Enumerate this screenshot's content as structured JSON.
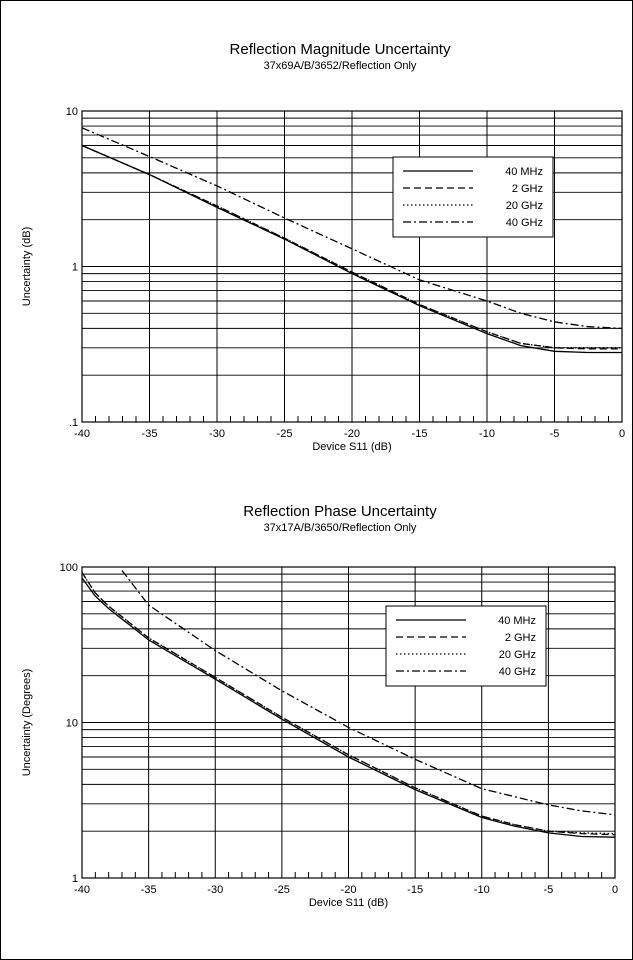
{
  "chart_data": [
    {
      "type": "line",
      "title": "Reflection Magnitude Uncertainty",
      "subtitle": "37x69A/B/3652/Reflection Only",
      "xlabel": "Device S11 (dB)",
      "ylabel": "Uncertainty (dB)",
      "xlim": [
        -40,
        0
      ],
      "ylim": [
        0.1,
        10
      ],
      "yscale": "log",
      "grid": true,
      "legend_position": "top-right",
      "x_ticks": [
        -40,
        -35,
        -30,
        -25,
        -20,
        -15,
        -10,
        -5,
        0
      ],
      "x_tick_labels": [
        "-40",
        "-35",
        "-30",
        "-25",
        "-20",
        "-15",
        "-10",
        "-5",
        "0"
      ],
      "y_ticks": [
        0.1,
        1,
        10
      ],
      "y_tick_labels": [
        ".1",
        "1",
        "10"
      ],
      "x": [
        -40,
        -35,
        -30,
        -25,
        -20,
        -15,
        -10,
        -7.5,
        -5,
        -2.5,
        0
      ],
      "series": [
        {
          "name": "40 MHz",
          "dash": "solid",
          "values": [
            6.0,
            3.9,
            2.4,
            1.5,
            0.9,
            0.56,
            0.37,
            0.31,
            0.285,
            0.28,
            0.28
          ]
        },
        {
          "name": "2 GHz",
          "dash": "dashed",
          "values": [
            6.0,
            3.9,
            2.45,
            1.52,
            0.92,
            0.57,
            0.38,
            0.32,
            0.3,
            0.295,
            0.295
          ]
        },
        {
          "name": "20 GHz",
          "dash": "dotted",
          "values": [
            6.0,
            3.9,
            2.45,
            1.52,
            0.92,
            0.57,
            0.38,
            0.32,
            0.3,
            0.3,
            0.3
          ]
        },
        {
          "name": "40 GHz",
          "dash": "dashdot",
          "values": [
            7.8,
            5.1,
            3.3,
            2.05,
            1.3,
            0.82,
            0.6,
            0.5,
            0.44,
            0.41,
            0.4
          ]
        }
      ]
    },
    {
      "type": "line",
      "title": "Reflection Phase Uncertainty",
      "subtitle": "37x17A/B/3650/Reflection Only",
      "xlabel": "Device S11 (dB)",
      "ylabel": "Uncertainty (Degrees)",
      "xlim": [
        -40,
        0
      ],
      "ylim": [
        1,
        100
      ],
      "yscale": "log",
      "grid": true,
      "legend_position": "top-right",
      "x_ticks": [
        -40,
        -35,
        -30,
        -25,
        -20,
        -15,
        -10,
        -5,
        0
      ],
      "x_tick_labels": [
        "-40",
        "-35",
        "-30",
        "-25",
        "-20",
        "-15",
        "-10",
        "-5",
        "0"
      ],
      "y_ticks": [
        1,
        10,
        100
      ],
      "y_tick_labels": [
        "1",
        "10",
        "100"
      ],
      "series": [
        {
          "name": "40 MHz",
          "dash": "solid",
          "x": [
            -40,
            -39,
            -38,
            -35,
            -30,
            -25,
            -20,
            -15,
            -10,
            -7.5,
            -5,
            -2.5,
            0
          ],
          "values": [
            85,
            65,
            54,
            34,
            19,
            10.5,
            6.0,
            3.7,
            2.45,
            2.15,
            1.95,
            1.85,
            1.83
          ]
        },
        {
          "name": "2 GHz",
          "dash": "dashed",
          "x": [
            -40,
            -39,
            -38,
            -35,
            -30,
            -25,
            -20,
            -15,
            -10,
            -7.5,
            -5,
            -2.5,
            0
          ],
          "values": [
            92,
            68,
            56,
            35,
            19.5,
            10.8,
            6.2,
            3.8,
            2.5,
            2.2,
            2.0,
            1.93,
            1.9
          ]
        },
        {
          "name": "20 GHz",
          "dash": "dotted",
          "x": [
            -40,
            -39,
            -38,
            -35,
            -30,
            -25,
            -20,
            -15,
            -10,
            -7.5,
            -5,
            -2.5,
            0
          ],
          "values": [
            92,
            68,
            56,
            35,
            19.5,
            10.8,
            6.2,
            3.8,
            2.5,
            2.2,
            2.0,
            1.95,
            1.93
          ]
        },
        {
          "name": "40 GHz",
          "dash": "dashdot",
          "x": [
            -37,
            -35,
            -30,
            -25,
            -20,
            -15,
            -10,
            -5,
            -2.5,
            0
          ],
          "values": [
            95,
            57,
            29,
            16,
            9.3,
            5.8,
            3.75,
            2.95,
            2.7,
            2.55
          ]
        }
      ]
    }
  ]
}
